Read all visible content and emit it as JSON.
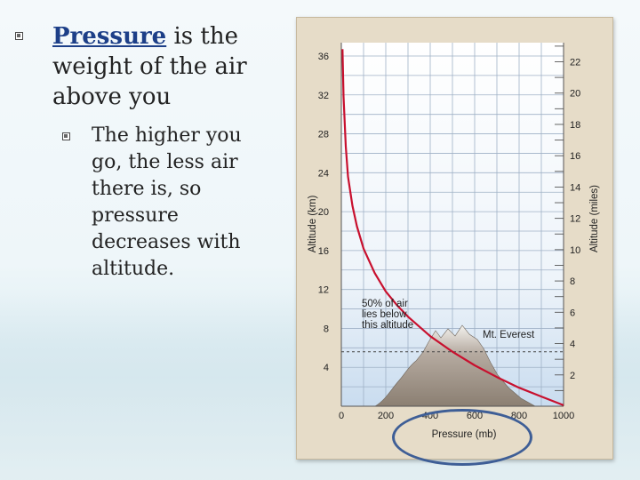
{
  "slide": {
    "bullet1": {
      "keyword": "Pressure",
      "rest": " is the weight of the air above you"
    },
    "bullet2": "The higher you go, the less air there is, so pressure decreases with altitude."
  },
  "chart_data": {
    "type": "line",
    "xlabel": "Pressure (mb)",
    "ylabel": "Altitude (km)",
    "y2label": "Altitude (miles)",
    "xlim": [
      0,
      1000
    ],
    "ylim": [
      0,
      37
    ],
    "y2lim": [
      0,
      23
    ],
    "xticks": [
      0,
      200,
      400,
      600,
      800,
      1000
    ],
    "yticks": [
      4,
      8,
      12,
      16,
      20,
      24,
      28,
      32,
      36
    ],
    "y2ticks": [
      2,
      4,
      6,
      8,
      10,
      12,
      14,
      16,
      18,
      20,
      22
    ],
    "grid": true,
    "series": [
      {
        "name": "",
        "color": "#c8102e",
        "x": [
          5,
          10,
          20,
          30,
          50,
          70,
          100,
          150,
          200,
          250,
          300,
          400,
          500,
          600,
          700,
          800,
          900,
          1000
        ],
        "y": [
          36.7,
          31.8,
          26.7,
          23.6,
          20.6,
          18.5,
          16.2,
          13.7,
          11.8,
          10.4,
          9.2,
          7.2,
          5.6,
          4.2,
          3.0,
          1.9,
          1.0,
          0.1
        ]
      }
    ],
    "reference_line": {
      "y": 5.6
    },
    "annotations": {
      "half_air": "50% of air lies below this altitude",
      "everest": "Mt. Everest"
    }
  }
}
